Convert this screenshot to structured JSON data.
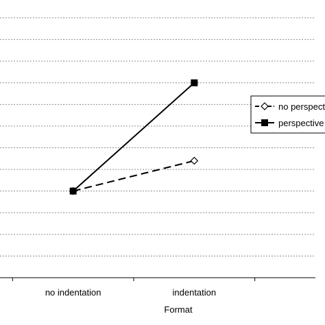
{
  "chart_data": {
    "type": "line",
    "title": "",
    "xlabel": "Format",
    "ylabel": "",
    "categories": [
      "no indentation",
      "indentation"
    ],
    "ylim": [
      0,
      12
    ],
    "grid": true,
    "legend_position": "right",
    "series": [
      {
        "name": "no perspective",
        "values": [
          4.0,
          5.4
        ],
        "color": "#000000",
        "line_style": "dashed",
        "marker": "open-diamond"
      },
      {
        "name": "perspective",
        "values": [
          4.0,
          9.0
        ],
        "color": "#000000",
        "line_style": "solid",
        "marker": "filled-square"
      }
    ]
  }
}
